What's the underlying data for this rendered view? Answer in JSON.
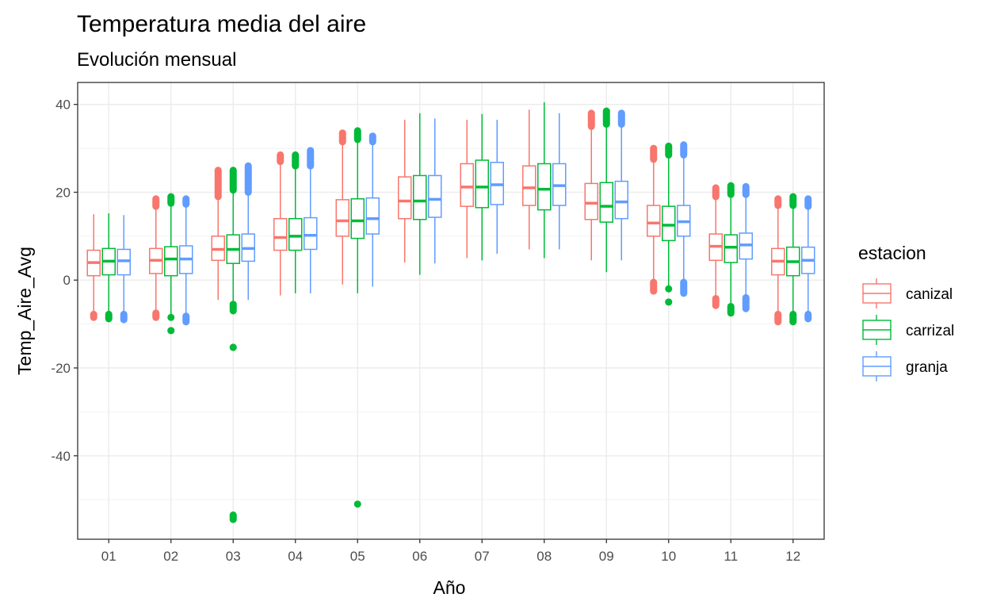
{
  "chart_data": {
    "type": "boxplot",
    "title": "Temperatura media del aire",
    "subtitle": "Evolución mensual",
    "xlabel": "Año",
    "ylabel": "Temp_Aire_Avg",
    "ylim": [
      -59,
      45
    ],
    "yticks": [
      -40,
      -20,
      0,
      20,
      40
    ],
    "y_minor_gridlines": [
      -50,
      -30,
      -10,
      10,
      30
    ],
    "grid": true,
    "legend": {
      "title": "estacion",
      "position": "right"
    },
    "categories": [
      "01",
      "02",
      "03",
      "04",
      "05",
      "06",
      "07",
      "08",
      "09",
      "10",
      "11",
      "12"
    ],
    "series": [
      {
        "name": "canizal",
        "color": "#F8766D",
        "boxes": [
          {
            "q1": 1.0,
            "median": 4.0,
            "q3": 6.8,
            "whisker_low": -7.5,
            "whisker_high": 15.0,
            "outlier_low": [
              -8.5,
              -7.8
            ],
            "outlier_high": []
          },
          {
            "q1": 1.5,
            "median": 4.5,
            "q3": 7.2,
            "whisker_low": -7.0,
            "whisker_high": 16.5,
            "outlier_low": [
              -8.5,
              -7.5
            ],
            "outlier_high": [
              16.8,
              18.5
            ]
          },
          {
            "q1": 4.5,
            "median": 7.0,
            "q3": 10.0,
            "whisker_low": -4.5,
            "whisker_high": 18.5,
            "outlier_low": [],
            "outlier_high": [
              19.0,
              25.0
            ]
          },
          {
            "q1": 6.8,
            "median": 9.7,
            "q3": 14.0,
            "whisker_low": -3.5,
            "whisker_high": 26.5,
            "outlier_low": [],
            "outlier_high": [
              27.0,
              28.5
            ]
          },
          {
            "q1": 10.0,
            "median": 13.5,
            "q3": 18.3,
            "whisker_low": -1.0,
            "whisker_high": 31.0,
            "outlier_low": [],
            "outlier_high": [
              31.5,
              33.5
            ]
          },
          {
            "q1": 14.0,
            "median": 18.0,
            "q3": 23.5,
            "whisker_low": 4.0,
            "whisker_high": 36.5,
            "outlier_low": [],
            "outlier_high": []
          },
          {
            "q1": 16.8,
            "median": 21.2,
            "q3": 26.5,
            "whisker_low": 5.0,
            "whisker_high": 36.5,
            "outlier_low": [],
            "outlier_high": []
          },
          {
            "q1": 17.0,
            "median": 21.0,
            "q3": 26.0,
            "whisker_low": 7.0,
            "whisker_high": 38.8,
            "outlier_low": [],
            "outlier_high": []
          },
          {
            "q1": 13.8,
            "median": 17.5,
            "q3": 22.0,
            "whisker_low": 4.5,
            "whisker_high": 34.5,
            "outlier_low": [],
            "outlier_high": [
              35.0,
              38.0
            ]
          },
          {
            "q1": 10.0,
            "median": 13.0,
            "q3": 17.0,
            "whisker_low": 0.0,
            "whisker_high": 27.0,
            "outlier_low": [
              -2.5,
              -0.5
            ],
            "outlier_high": [
              27.5,
              30.0
            ]
          },
          {
            "q1": 4.5,
            "median": 7.7,
            "q3": 10.5,
            "whisker_low": -4.0,
            "whisker_high": 18.5,
            "outlier_low": [
              -5.8,
              -4.2
            ],
            "outlier_high": [
              19.0,
              21.0
            ]
          },
          {
            "q1": 1.2,
            "median": 4.3,
            "q3": 7.2,
            "whisker_low": -7.5,
            "whisker_high": 16.5,
            "outlier_low": [
              -9.5,
              -7.8
            ],
            "outlier_high": [
              17.0,
              18.5
            ]
          }
        ]
      },
      {
        "name": "carrizal",
        "color": "#00BA38",
        "boxes": [
          {
            "q1": 1.2,
            "median": 4.3,
            "q3": 7.2,
            "whisker_low": -7.5,
            "whisker_high": 15.2,
            "outlier_low": [
              -8.8,
              -7.8
            ],
            "outlier_high": []
          },
          {
            "q1": 1.0,
            "median": 4.8,
            "q3": 7.6,
            "whisker_low": -8.0,
            "whisker_high": 17.0,
            "outlier_low": [
              -11.5,
              -8.5
            ],
            "outlier_high": [
              17.5,
              19.0
            ]
          },
          {
            "q1": 3.8,
            "median": 7.0,
            "q3": 10.3,
            "whisker_low": -5.0,
            "whisker_high": 20.0,
            "outlier_low": [
              -54.5,
              -53.5,
              -15.3,
              -7.0,
              -5.5
            ],
            "outlier_high": [
              20.5,
              25.0
            ]
          },
          {
            "q1": 6.8,
            "median": 10.0,
            "q3": 14.0,
            "whisker_low": -3.0,
            "whisker_high": 25.5,
            "outlier_low": [],
            "outlier_high": [
              26.0,
              28.5
            ]
          },
          {
            "q1": 9.5,
            "median": 13.5,
            "q3": 18.5,
            "whisker_low": -3.0,
            "whisker_high": 31.5,
            "outlier_low": [
              -51.0
            ],
            "outlier_high": [
              32.0,
              34.0
            ]
          },
          {
            "q1": 13.8,
            "median": 18.0,
            "q3": 23.8,
            "whisker_low": 1.2,
            "whisker_high": 38.0,
            "outlier_low": [],
            "outlier_high": []
          },
          {
            "q1": 16.5,
            "median": 21.2,
            "q3": 27.3,
            "whisker_low": 4.5,
            "whisker_high": 37.8,
            "outlier_low": [],
            "outlier_high": []
          },
          {
            "q1": 16.0,
            "median": 20.7,
            "q3": 26.5,
            "whisker_low": 5.0,
            "whisker_high": 40.5,
            "outlier_low": [],
            "outlier_high": []
          },
          {
            "q1": 13.2,
            "median": 16.8,
            "q3": 22.2,
            "whisker_low": 1.8,
            "whisker_high": 35.0,
            "outlier_low": [],
            "outlier_high": [
              35.5,
              38.5
            ]
          },
          {
            "q1": 9.0,
            "median": 12.5,
            "q3": 16.8,
            "whisker_low": -1.5,
            "whisker_high": 28.0,
            "outlier_low": [
              -5.0,
              -2.0
            ],
            "outlier_high": [
              28.5,
              30.5
            ]
          },
          {
            "q1": 4.0,
            "median": 7.5,
            "q3": 10.3,
            "whisker_low": -5.5,
            "whisker_high": 19.0,
            "outlier_low": [
              -7.5,
              -6.0
            ],
            "outlier_high": [
              19.5,
              21.5
            ]
          },
          {
            "q1": 1.0,
            "median": 4.2,
            "q3": 7.5,
            "whisker_low": -7.5,
            "whisker_high": 16.5,
            "outlier_low": [
              -9.5,
              -7.8
            ],
            "outlier_high": [
              17.0,
              19.0
            ]
          }
        ]
      },
      {
        "name": "granja",
        "color": "#619CFF",
        "boxes": [
          {
            "q1": 1.2,
            "median": 4.4,
            "q3": 7.0,
            "whisker_low": -7.5,
            "whisker_high": 14.8,
            "outlier_low": [
              -9.0,
              -7.8
            ],
            "outlier_high": []
          },
          {
            "q1": 1.5,
            "median": 4.8,
            "q3": 7.8,
            "whisker_low": -8.0,
            "whisker_high": 17.0,
            "outlier_low": [
              -9.5,
              -8.2
            ],
            "outlier_high": [
              17.3,
              18.5
            ]
          },
          {
            "q1": 4.3,
            "median": 7.2,
            "q3": 10.5,
            "whisker_low": -4.5,
            "whisker_high": 19.5,
            "outlier_low": [],
            "outlier_high": [
              20.0,
              26.0
            ]
          },
          {
            "q1": 7.0,
            "median": 10.2,
            "q3": 14.2,
            "whisker_low": -3.0,
            "whisker_high": 25.5,
            "outlier_low": [],
            "outlier_high": [
              26.0,
              29.5
            ]
          },
          {
            "q1": 10.5,
            "median": 14.0,
            "q3": 18.7,
            "whisker_low": -1.5,
            "whisker_high": 31.0,
            "outlier_low": [],
            "outlier_high": [
              31.5,
              32.8
            ]
          },
          {
            "q1": 14.3,
            "median": 18.4,
            "q3": 23.8,
            "whisker_low": 3.8,
            "whisker_high": 36.8,
            "outlier_low": [],
            "outlier_high": []
          },
          {
            "q1": 17.2,
            "median": 21.7,
            "q3": 26.8,
            "whisker_low": 6.0,
            "whisker_high": 36.5,
            "outlier_low": [],
            "outlier_high": []
          },
          {
            "q1": 17.0,
            "median": 21.5,
            "q3": 26.5,
            "whisker_low": 7.0,
            "whisker_high": 38.0,
            "outlier_low": [],
            "outlier_high": []
          },
          {
            "q1": 14.0,
            "median": 17.8,
            "q3": 22.5,
            "whisker_low": 4.5,
            "whisker_high": 35.0,
            "outlier_low": [],
            "outlier_high": [
              35.5,
              38.0
            ]
          },
          {
            "q1": 10.0,
            "median": 13.3,
            "q3": 17.0,
            "whisker_low": 0.0,
            "whisker_high": 28.0,
            "outlier_low": [
              -3.0,
              -0.5
            ],
            "outlier_high": [
              28.5,
              30.8
            ]
          },
          {
            "q1": 4.8,
            "median": 8.0,
            "q3": 10.7,
            "whisker_low": -3.5,
            "whisker_high": 19.0,
            "outlier_low": [
              -6.5,
              -4.0
            ],
            "outlier_high": [
              19.5,
              21.3
            ]
          },
          {
            "q1": 1.5,
            "median": 4.5,
            "q3": 7.5,
            "whisker_low": -7.0,
            "whisker_high": 16.5,
            "outlier_low": [
              -8.8,
              -7.8
            ],
            "outlier_high": [
              16.8,
              18.5
            ]
          }
        ]
      }
    ]
  }
}
